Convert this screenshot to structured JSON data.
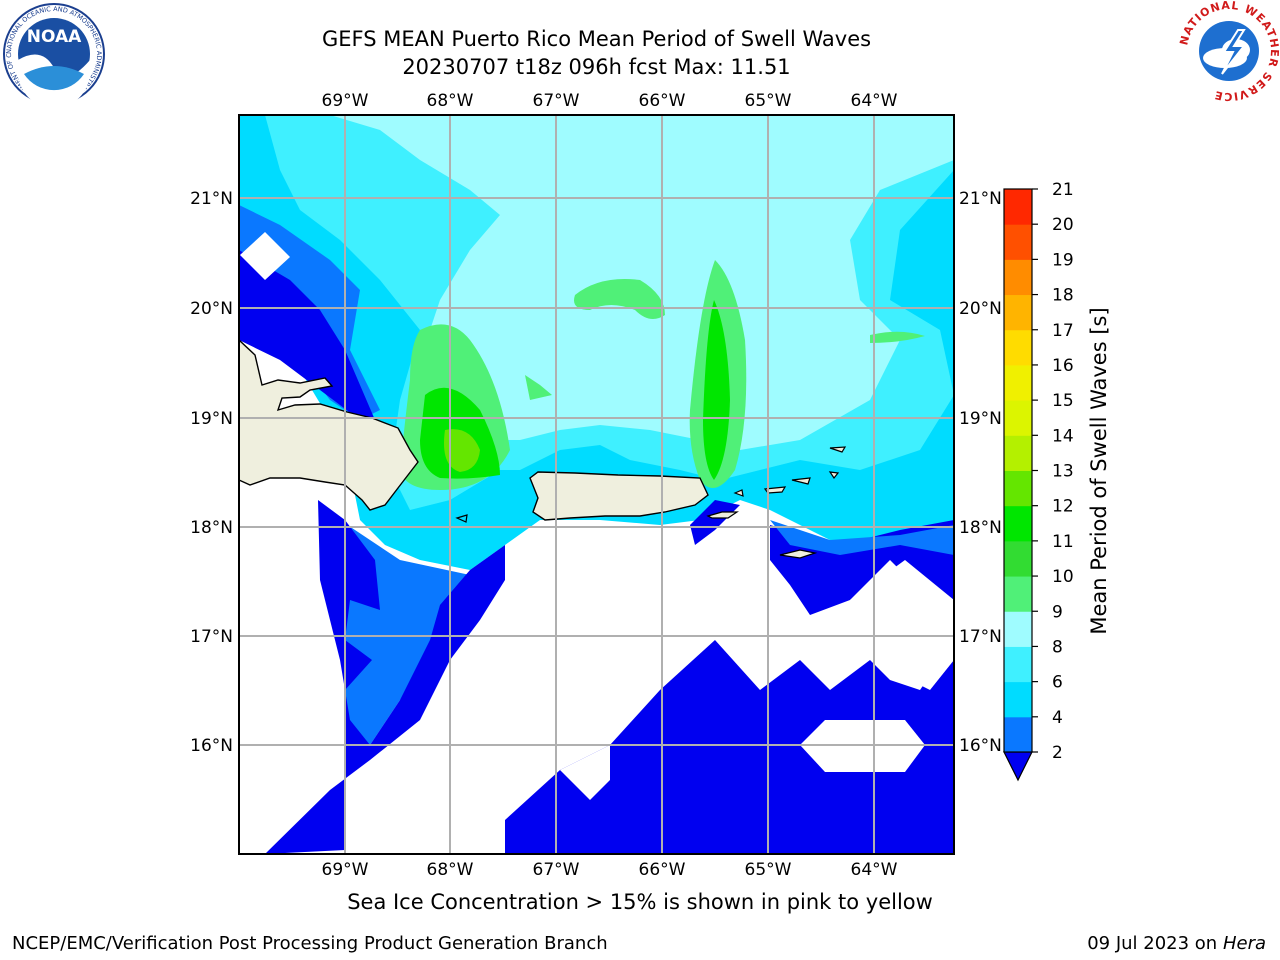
{
  "title": {
    "line1": "GEFS MEAN Puerto Rico Mean Period of Swell Waves",
    "line2": "20230707 t18z 096h fcst   Max: 11.51"
  },
  "map": {
    "lon_labels": [
      "69°W",
      "68°W",
      "67°W",
      "66°W",
      "65°W",
      "64°W"
    ],
    "lat_labels": [
      "21°N",
      "20°N",
      "19°N",
      "18°N",
      "17°N",
      "16°N"
    ]
  },
  "colorbar": {
    "label": "Mean Period of Swell Waves [s]",
    "ticks": [
      "2",
      "4",
      "6",
      "8",
      "9",
      "10",
      "11",
      "12",
      "13",
      "14",
      "15",
      "16",
      "17",
      "18",
      "19",
      "20",
      "21"
    ],
    "colors": [
      "#0000f0",
      "#0a78ff",
      "#00dcff",
      "#3ff0ff",
      "#9ffcff",
      "#50f078",
      "#32dc32",
      "#00e600",
      "#64e600",
      "#b4f000",
      "#dcf500",
      "#f0f000",
      "#ffdc00",
      "#ffb400",
      "#ff8c00",
      "#ff5000",
      "#ff2800",
      "#ff0000"
    ]
  },
  "caption": "Sea Ice Concentration > 15% is shown in pink to yellow",
  "footer": {
    "left": "NCEP/EMC/Verification Post Processing Product Generation Branch",
    "right_date": "09 Jul 2023 on ",
    "right_host": "Hera"
  },
  "logos": {
    "noaa": "NOAA",
    "nws": "NATIONAL WEATHER SERVICE",
    "noaa_ring": "NATIONAL OCEANIC AND ATMOSPHERIC ADMINISTRATION · U.S. DEPARTMENT OF COMMERCE"
  }
}
